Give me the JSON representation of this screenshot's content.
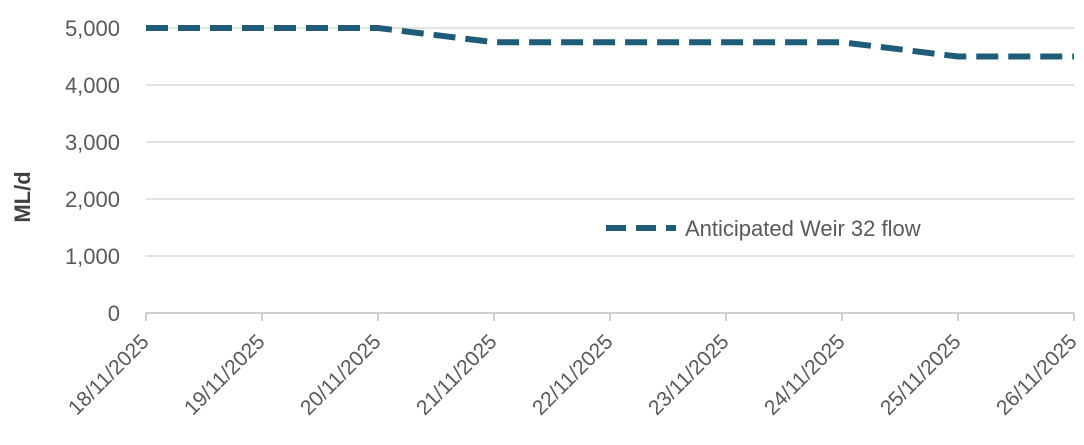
{
  "chart_data": {
    "type": "line",
    "title": "",
    "xlabel": "",
    "ylabel": "ML/d",
    "categories": [
      "18/11/2025",
      "19/11/2025",
      "20/11/2025",
      "21/11/2025",
      "22/11/2025",
      "23/11/2025",
      "24/11/2025",
      "25/11/2025",
      "26/11/2025"
    ],
    "series": [
      {
        "name": "Anticipated Weir 32 flow",
        "values": [
          5000,
          5000,
          5000,
          4750,
          4750,
          4750,
          4750,
          4500,
          4500
        ],
        "color": "#1f5c7a",
        "style": "dashed"
      }
    ],
    "yticks": [
      "0",
      "1,000",
      "2,000",
      "3,000",
      "4,000",
      "5,000"
    ],
    "ylim": [
      0,
      5000
    ],
    "grid": "horizontal",
    "legend_position": "inside-right"
  }
}
